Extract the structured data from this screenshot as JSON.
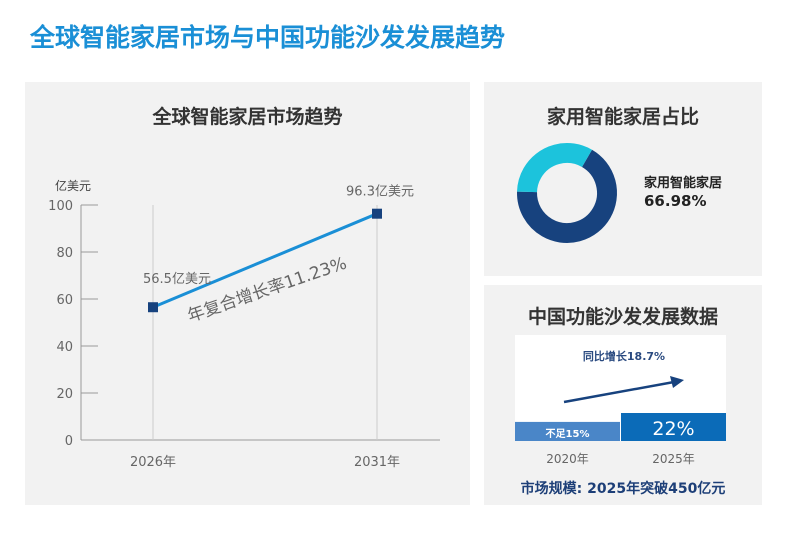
{
  "page_title": "全球智能家居市场与中国功能沙发发展趋势",
  "chart_data": [
    {
      "type": "line",
      "title": "全球智能家居市场趋势",
      "ylabel": "亿美元",
      "categories": [
        "2026年",
        "2031年"
      ],
      "values": [
        56.5,
        96.3
      ],
      "data_labels": [
        "56.5亿美元",
        "96.3亿美元"
      ],
      "annotation": "年复合增长率11.23%",
      "ylim": [
        0,
        100
      ],
      "yticks": [
        0,
        20,
        40,
        60,
        80,
        100
      ],
      "grid": false,
      "colors": {
        "line": "#1a8fd6",
        "marker": "#17427e"
      }
    },
    {
      "type": "pie",
      "title": "家用智能家居占比",
      "slices": [
        {
          "label": "家用智能家居",
          "value": 66.98,
          "display": "66.98%",
          "color": "#17427e"
        },
        {
          "value": 33.02,
          "color": "#1cc3dc"
        }
      ]
    },
    {
      "type": "bar",
      "title": "中国功能沙发发展数据",
      "categories": [
        "2020年",
        "2025年"
      ],
      "values": [
        15,
        22
      ],
      "data_labels": [
        "不足15%",
        "22%"
      ],
      "colors": [
        "#4a86c8",
        "#0b6bb8"
      ],
      "annotation": "同比增长18.7%",
      "footer": "市场规模: 2025年突破450亿元"
    }
  ]
}
